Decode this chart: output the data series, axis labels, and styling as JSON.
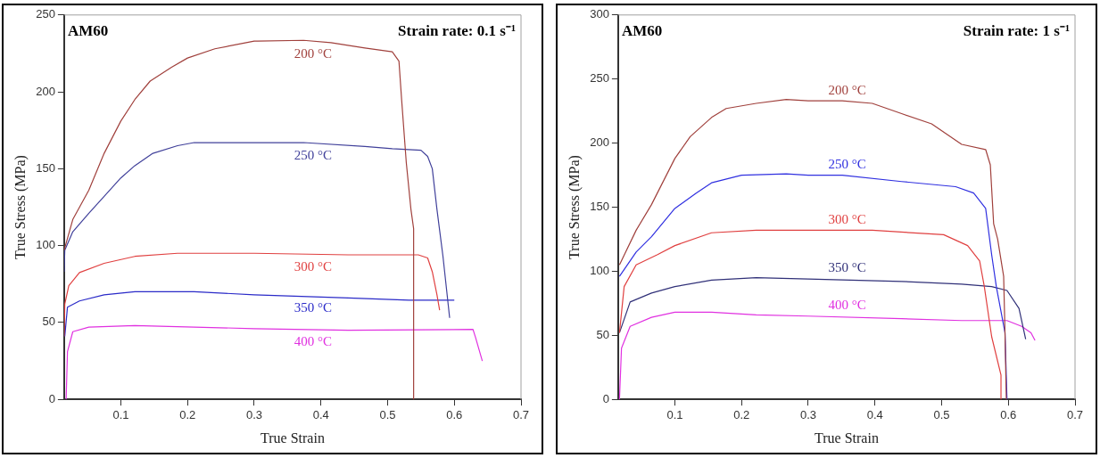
{
  "chart_data": [
    {
      "type": "line",
      "xlabel": "True Strain",
      "ylabel": "True Stress (MPa)",
      "xlim": [
        0.015,
        0.7
      ],
      "xticks": [
        0.1,
        0.2,
        0.3,
        0.4,
        0.5,
        0.6,
        0.7
      ],
      "ylim": [
        0,
        250
      ],
      "yticks": [
        0,
        50,
        100,
        150,
        200,
        250
      ],
      "annotations": [
        "AM60",
        "Strain rate: 0.1 s⁻¹"
      ],
      "series": [
        {
          "name": "200 °C",
          "color": "#a0403c",
          "x": [
            0.015,
            0.028,
            0.052,
            0.075,
            0.1,
            0.121,
            0.144,
            0.176,
            0.2,
            0.241,
            0.3,
            0.305,
            0.374,
            0.415,
            0.466,
            0.507,
            0.517,
            0.521,
            0.528,
            0.535,
            0.539,
            0.539
          ],
          "values": [
            97,
            117,
            136,
            160,
            181,
            195,
            207,
            216,
            222,
            228,
            233,
            233,
            233.5,
            232,
            228.5,
            226,
            220,
            195,
            154,
            123.5,
            111,
            0
          ]
        },
        {
          "name": "250 °C",
          "color": "#40409a",
          "x": [
            0.015,
            0.016,
            0.028,
            0.052,
            0.075,
            0.1,
            0.121,
            0.148,
            0.185,
            0.21,
            0.3,
            0.374,
            0.466,
            0.507,
            0.55,
            0.56,
            0.567,
            0.574,
            0.583,
            0.593
          ],
          "values": [
            83,
            97,
            109,
            121,
            132,
            144,
            152,
            160,
            165,
            167,
            167,
            167,
            164.5,
            163,
            162,
            158,
            150,
            123.5,
            93,
            53
          ]
        },
        {
          "name": "300 °C",
          "color": "#e04040",
          "x": [
            0.015,
            0.016,
            0.022,
            0.038,
            0.075,
            0.121,
            0.185,
            0.3,
            0.441,
            0.546,
            0.56,
            0.567,
            0.574,
            0.578
          ],
          "values": [
            41,
            62,
            74,
            82.5,
            88.5,
            93,
            95,
            95,
            94,
            94,
            92,
            83,
            68,
            58
          ]
        },
        {
          "name": "350 °C",
          "color": "#2a2ac8",
          "x": [
            0.016,
            0.02,
            0.038,
            0.075,
            0.121,
            0.21,
            0.3,
            0.441,
            0.532,
            0.6
          ],
          "values": [
            41,
            60,
            64,
            68,
            70,
            70,
            68,
            66,
            64.5,
            64.5
          ]
        },
        {
          "name": "400 °C",
          "color": "#e030e0",
          "x": [
            0.018,
            0.02,
            0.028,
            0.052,
            0.121,
            0.3,
            0.441,
            0.628,
            0.632,
            0.642
          ],
          "values": [
            0,
            31,
            44,
            47,
            48,
            46,
            45,
            45.5,
            40,
            25
          ]
        }
      ]
    },
    {
      "type": "line",
      "xlabel": "True Strain",
      "ylabel": "True Stress (MPa)",
      "xlim": [
        0.015,
        0.7
      ],
      "xticks": [
        0.1,
        0.2,
        0.3,
        0.4,
        0.5,
        0.6,
        0.7
      ],
      "ylim": [
        0,
        300
      ],
      "yticks": [
        0,
        50,
        100,
        150,
        200,
        250,
        300
      ],
      "annotations": [
        "AM60",
        "Strain rate: 1 s⁻¹"
      ],
      "series": [
        {
          "name": "200 °C",
          "color": "#a0403c",
          "x": [
            0.017,
            0.042,
            0.065,
            0.1,
            0.123,
            0.155,
            0.177,
            0.222,
            0.267,
            0.3,
            0.351,
            0.396,
            0.44,
            0.485,
            0.53,
            0.566,
            0.573,
            0.578,
            0.584,
            0.593,
            0.595,
            0.597
          ],
          "values": [
            105,
            132,
            152,
            188,
            205,
            220,
            227,
            231,
            234,
            233,
            233,
            231,
            223,
            215,
            199,
            195,
            183,
            137,
            125,
            96,
            52,
            0
          ]
        },
        {
          "name": "250 °C",
          "color": "#3030e0",
          "x": [
            0.017,
            0.042,
            0.065,
            0.1,
            0.132,
            0.155,
            0.2,
            0.267,
            0.3,
            0.351,
            0.44,
            0.521,
            0.548,
            0.566,
            0.575,
            0.582,
            0.595,
            0.598
          ],
          "values": [
            96,
            115,
            127,
            149,
            161,
            169,
            175,
            176,
            175,
            175,
            170,
            166,
            161,
            149,
            113,
            88,
            52,
            0
          ]
        },
        {
          "name": "300 °C",
          "color": "#e04040",
          "x": [
            0.017,
            0.024,
            0.042,
            0.074,
            0.1,
            0.155,
            0.222,
            0.3,
            0.396,
            0.503,
            0.539,
            0.557,
            0.564,
            0.575,
            0.589,
            0.589
          ],
          "values": [
            52,
            88,
            105,
            113,
            120,
            130,
            132,
            132,
            132,
            128.5,
            120,
            108,
            88,
            49,
            19,
            0
          ]
        },
        {
          "name": "350 °C",
          "color": "#303078",
          "x": [
            0.017,
            0.033,
            0.065,
            0.1,
            0.155,
            0.222,
            0.3,
            0.44,
            0.53,
            0.575,
            0.598,
            0.616,
            0.626
          ],
          "values": [
            52,
            76,
            83,
            88,
            93,
            95,
            94,
            92,
            90,
            88,
            85,
            71,
            47
          ]
        },
        {
          "name": "400 °C",
          "color": "#e030e0",
          "x": [
            0.017,
            0.02,
            0.033,
            0.065,
            0.1,
            0.155,
            0.222,
            0.3,
            0.44,
            0.53,
            0.598,
            0.62,
            0.634,
            0.64
          ],
          "values": [
            0,
            40,
            57,
            64,
            68,
            68,
            66,
            65,
            63,
            61.5,
            61.5,
            57,
            52,
            46
          ]
        }
      ]
    }
  ]
}
